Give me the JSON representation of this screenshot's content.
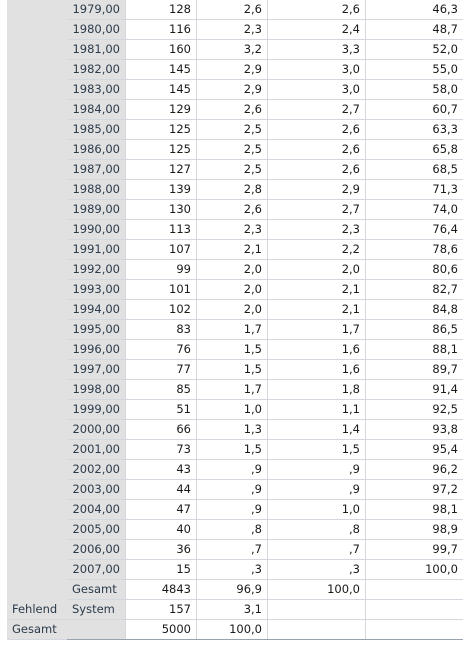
{
  "rows": [
    {
      "year": "1979,00",
      "freq": "128",
      "pct": "2,6",
      "valid": "2,6",
      "cum": "46,3"
    },
    {
      "year": "1980,00",
      "freq": "116",
      "pct": "2,3",
      "valid": "2,4",
      "cum": "48,7"
    },
    {
      "year": "1981,00",
      "freq": "160",
      "pct": "3,2",
      "valid": "3,3",
      "cum": "52,0"
    },
    {
      "year": "1982,00",
      "freq": "145",
      "pct": "2,9",
      "valid": "3,0",
      "cum": "55,0"
    },
    {
      "year": "1983,00",
      "freq": "145",
      "pct": "2,9",
      "valid": "3,0",
      "cum": "58,0"
    },
    {
      "year": "1984,00",
      "freq": "129",
      "pct": "2,6",
      "valid": "2,7",
      "cum": "60,7"
    },
    {
      "year": "1985,00",
      "freq": "125",
      "pct": "2,5",
      "valid": "2,6",
      "cum": "63,3"
    },
    {
      "year": "1986,00",
      "freq": "125",
      "pct": "2,5",
      "valid": "2,6",
      "cum": "65,8"
    },
    {
      "year": "1987,00",
      "freq": "127",
      "pct": "2,5",
      "valid": "2,6",
      "cum": "68,5"
    },
    {
      "year": "1988,00",
      "freq": "139",
      "pct": "2,8",
      "valid": "2,9",
      "cum": "71,3"
    },
    {
      "year": "1989,00",
      "freq": "130",
      "pct": "2,6",
      "valid": "2,7",
      "cum": "74,0"
    },
    {
      "year": "1990,00",
      "freq": "113",
      "pct": "2,3",
      "valid": "2,3",
      "cum": "76,4"
    },
    {
      "year": "1991,00",
      "freq": "107",
      "pct": "2,1",
      "valid": "2,2",
      "cum": "78,6"
    },
    {
      "year": "1992,00",
      "freq": "99",
      "pct": "2,0",
      "valid": "2,0",
      "cum": "80,6"
    },
    {
      "year": "1993,00",
      "freq": "101",
      "pct": "2,0",
      "valid": "2,1",
      "cum": "82,7"
    },
    {
      "year": "1994,00",
      "freq": "102",
      "pct": "2,0",
      "valid": "2,1",
      "cum": "84,8"
    },
    {
      "year": "1995,00",
      "freq": "83",
      "pct": "1,7",
      "valid": "1,7",
      "cum": "86,5"
    },
    {
      "year": "1996,00",
      "freq": "76",
      "pct": "1,5",
      "valid": "1,6",
      "cum": "88,1"
    },
    {
      "year": "1997,00",
      "freq": "77",
      "pct": "1,5",
      "valid": "1,6",
      "cum": "89,7"
    },
    {
      "year": "1998,00",
      "freq": "85",
      "pct": "1,7",
      "valid": "1,8",
      "cum": "91,4"
    },
    {
      "year": "1999,00",
      "freq": "51",
      "pct": "1,0",
      "valid": "1,1",
      "cum": "92,5"
    },
    {
      "year": "2000,00",
      "freq": "66",
      "pct": "1,3",
      "valid": "1,4",
      "cum": "93,8"
    },
    {
      "year": "2001,00",
      "freq": "73",
      "pct": "1,5",
      "valid": "1,5",
      "cum": "95,4"
    },
    {
      "year": "2002,00",
      "freq": "43",
      "pct": ",9",
      "valid": ",9",
      "cum": "96,2"
    },
    {
      "year": "2003,00",
      "freq": "44",
      "pct": ",9",
      "valid": ",9",
      "cum": "97,2"
    },
    {
      "year": "2004,00",
      "freq": "47",
      "pct": ",9",
      "valid": "1,0",
      "cum": "98,1"
    },
    {
      "year": "2005,00",
      "freq": "40",
      "pct": ",8",
      "valid": ",8",
      "cum": "98,9"
    },
    {
      "year": "2006,00",
      "freq": "36",
      "pct": ",7",
      "valid": ",7",
      "cum": "99,7"
    },
    {
      "year": "2007,00",
      "freq": "15",
      "pct": ",3",
      "valid": ",3",
      "cum": "100,0"
    }
  ],
  "valid_total": {
    "label": "Gesamt",
    "freq": "4843",
    "pct": "96,9",
    "valid": "100,0",
    "cum": ""
  },
  "missing": {
    "group": "Fehlend",
    "label": "System",
    "freq": "157",
    "pct": "3,1",
    "valid": "",
    "cum": ""
  },
  "total": {
    "group": "Gesamt",
    "label": "",
    "freq": "5000",
    "pct": "100,0",
    "valid": "",
    "cum": ""
  }
}
